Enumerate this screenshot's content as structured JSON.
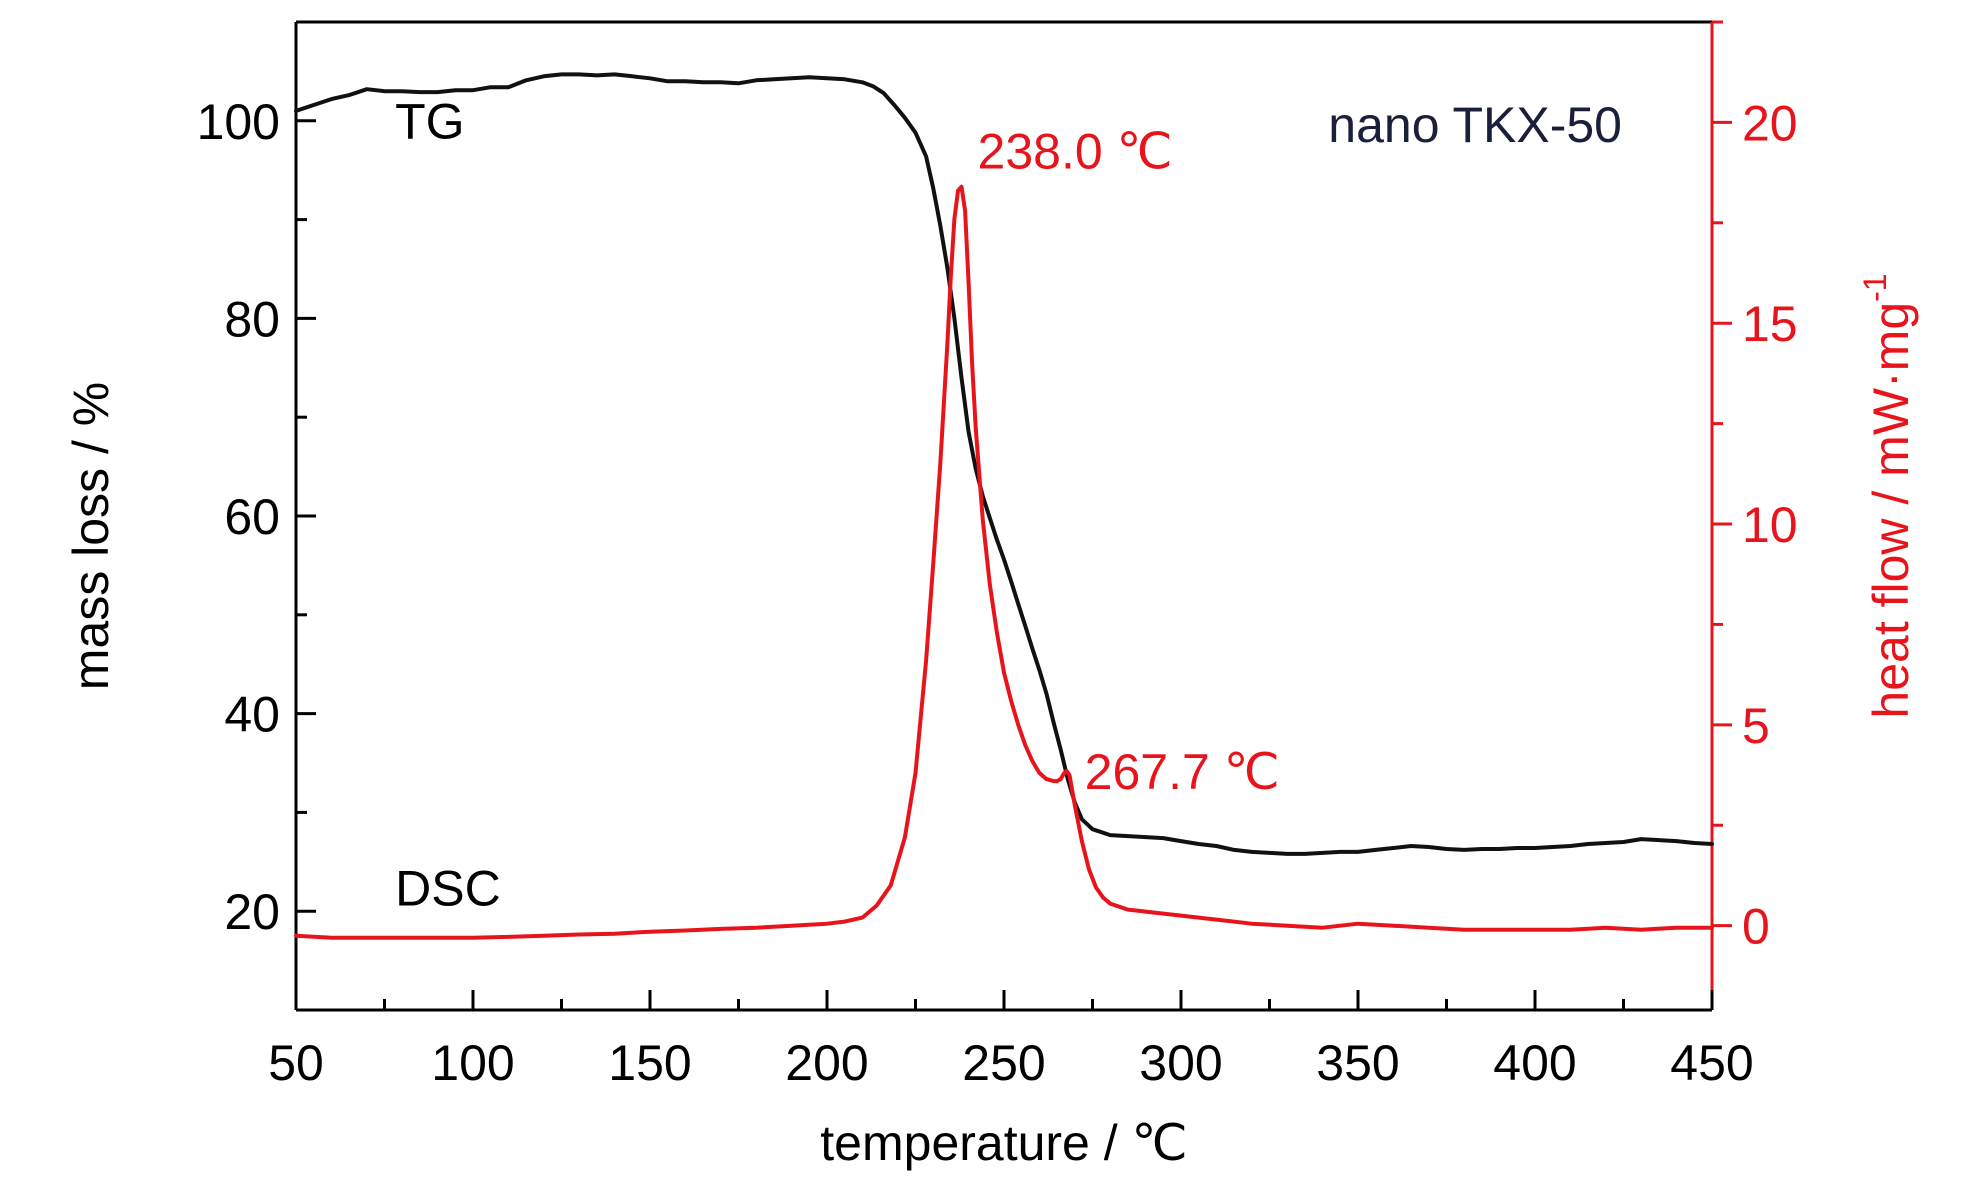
{
  "chart_data": {
    "type": "line",
    "xlabel": "temperature / ℃",
    "ylabel_left": "mass loss / %",
    "ylabel_right": "heat flow / mW·mg",
    "ylabel_right_sup": "-1",
    "xlim": [
      50,
      450
    ],
    "ylim_left": [
      10,
      110
    ],
    "ylim_right": [
      -2.1,
      22.5
    ],
    "x_ticks": [
      50,
      100,
      150,
      200,
      250,
      300,
      350,
      400,
      450
    ],
    "y_left_ticks": [
      20,
      40,
      60,
      80,
      100
    ],
    "y_right_ticks": [
      0,
      5,
      10,
      15,
      20
    ],
    "grid": false,
    "colors": {
      "TG": "#111111",
      "DSC": "#e8141c",
      "annotation": "#e8141c",
      "sample": "#1a1f3a",
      "axis": "#000000"
    },
    "series": [
      {
        "name": "TG",
        "axis": "left",
        "x": [
          50,
          55,
          60,
          65,
          70,
          75,
          80,
          85,
          90,
          95,
          100,
          105,
          110,
          115,
          120,
          125,
          130,
          135,
          140,
          145,
          150,
          155,
          160,
          165,
          170,
          175,
          180,
          185,
          190,
          195,
          200,
          205,
          210,
          213,
          216,
          219,
          222,
          225,
          228,
          230,
          232,
          234,
          236,
          238,
          240,
          242,
          244,
          246,
          248,
          250,
          252,
          254,
          256,
          258,
          260,
          262,
          264,
          266,
          268,
          270,
          272,
          275,
          280,
          285,
          290,
          295,
          300,
          305,
          310,
          315,
          320,
          325,
          330,
          335,
          340,
          345,
          350,
          355,
          360,
          365,
          370,
          375,
          380,
          385,
          390,
          395,
          400,
          405,
          410,
          415,
          420,
          425,
          430,
          435,
          440,
          445,
          450
        ],
        "y": [
          101.0,
          101.6,
          102.2,
          102.6,
          103.2,
          103.0,
          103.0,
          102.9,
          102.9,
          103.1,
          103.1,
          103.4,
          103.4,
          104.1,
          104.5,
          104.7,
          104.7,
          104.6,
          104.7,
          104.5,
          104.3,
          104.0,
          104.0,
          103.9,
          103.9,
          103.8,
          104.1,
          104.2,
          104.3,
          104.4,
          104.3,
          104.2,
          103.9,
          103.5,
          102.8,
          101.6,
          100.3,
          98.8,
          96.4,
          93.2,
          89.4,
          85.1,
          80.0,
          74.0,
          68.5,
          64.8,
          62.0,
          59.8,
          57.6,
          55.6,
          53.4,
          51.1,
          48.9,
          46.6,
          44.4,
          42.0,
          39.1,
          36.4,
          33.4,
          31.0,
          29.3,
          28.3,
          27.7,
          27.6,
          27.5,
          27.4,
          27.1,
          26.8,
          26.6,
          26.2,
          26.0,
          25.9,
          25.8,
          25.8,
          25.9,
          26.0,
          26.0,
          26.2,
          26.4,
          26.6,
          26.5,
          26.3,
          26.2,
          26.3,
          26.3,
          26.4,
          26.4,
          26.5,
          26.6,
          26.8,
          26.9,
          27.0,
          27.3,
          27.2,
          27.1,
          26.9,
          26.8
        ]
      },
      {
        "name": "DSC",
        "axis": "right",
        "x": [
          50,
          60,
          70,
          80,
          90,
          100,
          110,
          120,
          130,
          140,
          150,
          160,
          170,
          180,
          190,
          200,
          205,
          210,
          214,
          218,
          222,
          225,
          228,
          230,
          232,
          234,
          235,
          236,
          237,
          238,
          239,
          240,
          241,
          242,
          244,
          246,
          248,
          250,
          252,
          254,
          256,
          258,
          260,
          262,
          264,
          265,
          266,
          267,
          267.7,
          268.5,
          270,
          272,
          274,
          276,
          278,
          280,
          285,
          290,
          300,
          310,
          320,
          330,
          340,
          350,
          360,
          370,
          380,
          390,
          400,
          410,
          420,
          430,
          440,
          450
        ],
        "y": [
          -0.25,
          -0.3,
          -0.3,
          -0.3,
          -0.3,
          -0.3,
          -0.28,
          -0.25,
          -0.22,
          -0.2,
          -0.15,
          -0.12,
          -0.08,
          -0.05,
          0.0,
          0.05,
          0.1,
          0.2,
          0.5,
          1.0,
          2.2,
          3.8,
          6.6,
          9.0,
          11.5,
          14.5,
          16.2,
          17.6,
          18.3,
          18.4,
          17.8,
          16.0,
          14.0,
          12.4,
          10.1,
          8.5,
          7.3,
          6.3,
          5.6,
          5.0,
          4.5,
          4.1,
          3.8,
          3.65,
          3.6,
          3.6,
          3.65,
          3.8,
          3.85,
          3.75,
          3.0,
          2.1,
          1.4,
          0.95,
          0.7,
          0.55,
          0.4,
          0.35,
          0.25,
          0.15,
          0.05,
          0.0,
          -0.05,
          0.05,
          0.0,
          -0.05,
          -0.1,
          -0.1,
          -0.1,
          -0.1,
          -0.05,
          -0.1,
          -0.05,
          -0.05
        ]
      }
    ],
    "annotations": [
      {
        "text": "238.0 ℃",
        "x": 238.0,
        "y": 18.4,
        "axis": "right"
      },
      {
        "text": "267.7 ℃",
        "x": 267.7,
        "y": 3.85,
        "axis": "right"
      }
    ],
    "series_labels": {
      "TG": "TG",
      "DSC": "DSC"
    },
    "sample_label": "nano TKX-50"
  }
}
